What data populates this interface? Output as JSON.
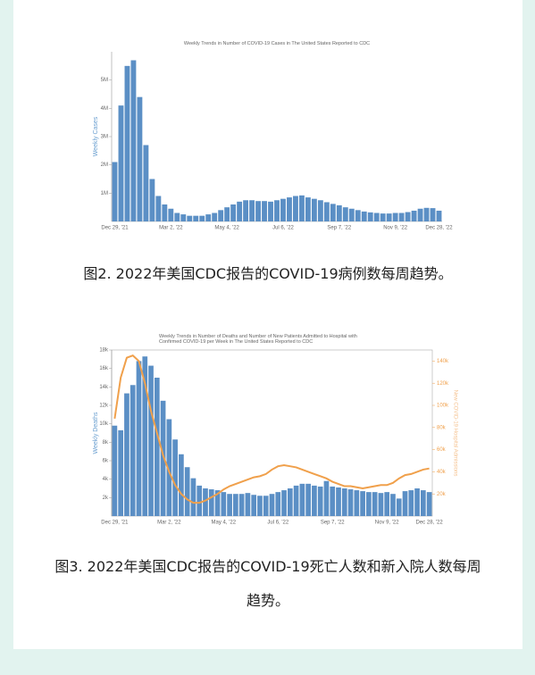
{
  "chart_data": [
    {
      "type": "bar",
      "title": "Weekly Trends in Number of COVID-19 Cases in The United States Reported to CDC",
      "y_label": "Weekly Cases",
      "caption": "图2. 2022年美国CDC报告的COVID-19病例数每周趋势。",
      "categories": [
        "Dec 29, '21",
        null,
        null,
        null,
        null,
        null,
        null,
        null,
        null,
        "Mar 2, '22",
        null,
        null,
        null,
        null,
        null,
        null,
        null,
        null,
        "May 4, '22",
        null,
        null,
        null,
        null,
        null,
        null,
        null,
        null,
        "Jul 6, '22",
        null,
        null,
        null,
        null,
        null,
        null,
        null,
        null,
        "Sep 7, '22",
        null,
        null,
        null,
        null,
        null,
        null,
        null,
        null,
        "Nov 9, '22",
        null,
        null,
        null,
        null,
        null,
        null,
        "Dec 28, '22"
      ],
      "series": [
        {
          "type": "bar",
          "color": "#5b8fc5",
          "values": [
            2100000,
            4100000,
            5500000,
            5700000,
            4400000,
            2700000,
            1500000,
            900000,
            600000,
            450000,
            300000,
            250000,
            200000,
            200000,
            200000,
            250000,
            300000,
            400000,
            500000,
            600000,
            700000,
            750000,
            750000,
            720000,
            720000,
            700000,
            750000,
            800000,
            850000,
            900000,
            920000,
            850000,
            800000,
            750000,
            680000,
            620000,
            570000,
            500000,
            450000,
            400000,
            350000,
            320000,
            300000,
            280000,
            280000,
            300000,
            300000,
            330000,
            380000,
            450000,
            480000,
            470000,
            380000
          ]
        }
      ],
      "ylim": [
        0,
        6000000
      ],
      "yticks": [
        {
          "value": 1000000,
          "label": "1M"
        },
        {
          "value": 2000000,
          "label": "2M"
        },
        {
          "value": 3000000,
          "label": "3M"
        },
        {
          "value": 4000000,
          "label": "4M"
        },
        {
          "value": 5000000,
          "label": "5M"
        }
      ]
    },
    {
      "type": "bar-line",
      "title": "Weekly Trends in Number of Deaths and Number of New Patients Admitted to Hospital with Confirmed COVID-19 per Week in The United States Reported to CDC",
      "y_label": "Weekly Deaths",
      "y2_label": "New COVID-19 Hospital Admissions",
      "caption": "图3. 2022年美国CDC报告的COVID-19死亡人数和新入院人数每周趋势。",
      "categories": [
        "Dec 29, '21",
        null,
        null,
        null,
        null,
        null,
        null,
        null,
        null,
        "Mar 2, '22",
        null,
        null,
        null,
        null,
        null,
        null,
        null,
        null,
        "May 4, '22",
        null,
        null,
        null,
        null,
        null,
        null,
        null,
        null,
        "Jul 6, '22",
        null,
        null,
        null,
        null,
        null,
        null,
        null,
        null,
        "Sep 7, '22",
        null,
        null,
        null,
        null,
        null,
        null,
        null,
        null,
        "Nov 9, '22",
        null,
        null,
        null,
        null,
        null,
        null,
        "Dec 28, '22"
      ],
      "series": [
        {
          "type": "bar",
          "color": "#5b8fc5",
          "values": [
            9800,
            9300,
            13300,
            14200,
            16800,
            17300,
            16300,
            15000,
            12500,
            10500,
            8300,
            6700,
            5300,
            4100,
            3300,
            3000,
            2900,
            2800,
            2600,
            2400,
            2400,
            2400,
            2500,
            2300,
            2200,
            2200,
            2400,
            2600,
            2800,
            3000,
            3300,
            3500,
            3500,
            3300,
            3200,
            3800,
            3200,
            3100,
            3000,
            2900,
            2800,
            2700,
            2600,
            2600,
            2500,
            2600,
            2400,
            1900,
            2700,
            2800,
            3000,
            2800,
            2600
          ]
        },
        {
          "type": "line",
          "axis": "y2",
          "color": "#f0a04b",
          "values": [
            88000,
            125000,
            143000,
            145000,
            140000,
            120000,
            95000,
            75000,
            55000,
            40000,
            28000,
            20000,
            15000,
            12000,
            12000,
            14000,
            17000,
            20000,
            24000,
            27000,
            29000,
            31000,
            33000,
            35000,
            36000,
            38000,
            42000,
            45000,
            46000,
            45000,
            44000,
            42000,
            40000,
            38000,
            36000,
            34000,
            31000,
            29000,
            27000,
            27000,
            26000,
            25000,
            26000,
            27000,
            28000,
            28000,
            30000,
            34000,
            37000,
            38000,
            40000,
            42000,
            43000
          ]
        }
      ],
      "ylim": [
        0,
        18000
      ],
      "yticks": [
        {
          "value": 2000,
          "label": "2k"
        },
        {
          "value": 4000,
          "label": "4k"
        },
        {
          "value": 6000,
          "label": "6k"
        },
        {
          "value": 8000,
          "label": "8k"
        },
        {
          "value": 10000,
          "label": "10k"
        },
        {
          "value": 12000,
          "label": "12k"
        },
        {
          "value": 14000,
          "label": "14k"
        },
        {
          "value": 16000,
          "label": "16k"
        },
        {
          "value": 18000,
          "label": "18k"
        }
      ],
      "y2lim": [
        0,
        150000
      ],
      "y2ticks": [
        {
          "value": 20000,
          "label": "20k"
        },
        {
          "value": 40000,
          "label": "40k"
        },
        {
          "value": 60000,
          "label": "60k"
        },
        {
          "value": 80000,
          "label": "80k"
        },
        {
          "value": 100000,
          "label": "100k"
        },
        {
          "value": 120000,
          "label": "120k"
        },
        {
          "value": 140000,
          "label": "140k"
        }
      ]
    }
  ]
}
